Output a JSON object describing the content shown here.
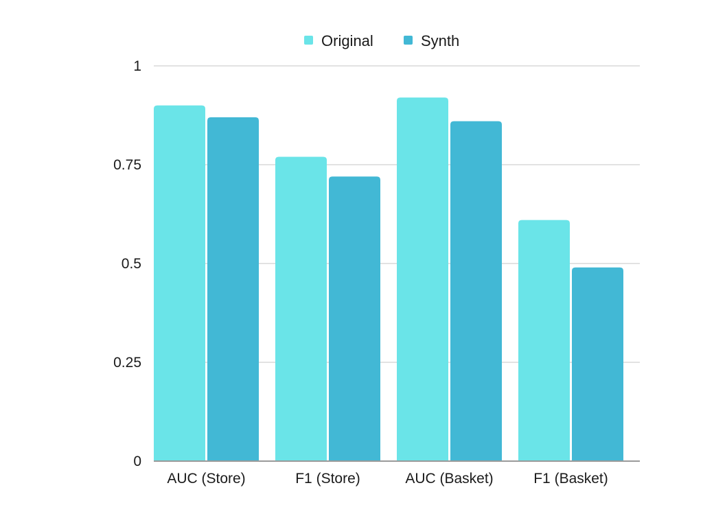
{
  "chart_data": {
    "type": "bar",
    "categories": [
      "AUC (Store)",
      "F1 (Store)",
      "AUC (Basket)",
      "F1 (Basket)"
    ],
    "series": [
      {
        "name": "Original",
        "color": "#6ae4e8",
        "values": [
          0.9,
          0.77,
          0.92,
          0.61
        ]
      },
      {
        "name": "Synth",
        "color": "#42b8d5",
        "values": [
          0.87,
          0.72,
          0.86,
          0.49
        ]
      }
    ],
    "title": "",
    "xlabel": "",
    "ylabel": "",
    "ylim": [
      0,
      1
    ],
    "yticks": [
      0,
      0.25,
      0.5,
      0.75,
      1
    ],
    "ytick_labels": [
      "0",
      "0.25",
      "0.5",
      "0.75",
      "1"
    ],
    "grid": true,
    "legend_position": "top-center"
  }
}
